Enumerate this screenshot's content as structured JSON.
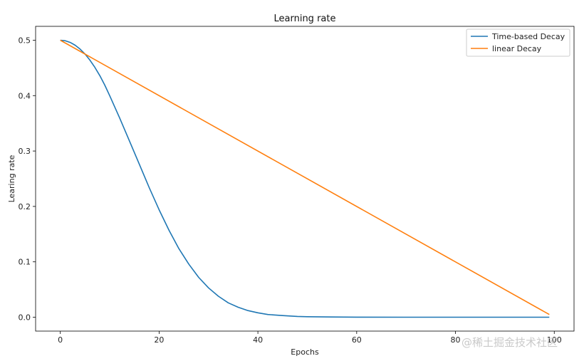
{
  "chart_data": {
    "type": "line",
    "title": "Learning rate",
    "xlabel": "Epochs",
    "ylabel": "Learing rate",
    "xlim": [
      -5,
      104
    ],
    "ylim": [
      -0.025,
      0.525
    ],
    "xticks": [
      0,
      20,
      40,
      60,
      80,
      100
    ],
    "yticks": [
      0.0,
      0.1,
      0.2,
      0.3,
      0.4,
      0.5
    ],
    "xtick_labels": [
      "0",
      "20",
      "40",
      "60",
      "80",
      "100"
    ],
    "ytick_labels": [
      "0.0",
      "0.1",
      "0.2",
      "0.3",
      "0.4",
      "0.5"
    ],
    "grid": false,
    "legend_position": "top-right",
    "series": [
      {
        "name": "Time-based Decay",
        "color": "#1f77b4",
        "x": [
          0,
          1,
          2,
          3,
          4,
          5,
          6,
          7,
          8,
          9,
          10,
          12,
          14,
          16,
          18,
          20,
          22,
          24,
          26,
          28,
          30,
          32,
          34,
          36,
          38,
          40,
          42,
          45,
          48,
          50,
          55,
          60,
          70,
          80,
          90,
          99
        ],
        "y": [
          0.5,
          0.499,
          0.496,
          0.491,
          0.484,
          0.475,
          0.464,
          0.451,
          0.436,
          0.419,
          0.4,
          0.36,
          0.318,
          0.276,
          0.234,
          0.194,
          0.157,
          0.124,
          0.096,
          0.072,
          0.053,
          0.038,
          0.026,
          0.018,
          0.012,
          0.008,
          0.005,
          0.003,
          0.0015,
          0.001,
          0.0004,
          0.0002,
          0.0,
          0.0,
          0.0,
          0.0
        ]
      },
      {
        "name": "linear Decay",
        "color": "#ff7f0e",
        "x": [
          0,
          99
        ],
        "y": [
          0.5,
          0.005
        ]
      }
    ]
  },
  "watermark": "@稀土掘金技术社区"
}
